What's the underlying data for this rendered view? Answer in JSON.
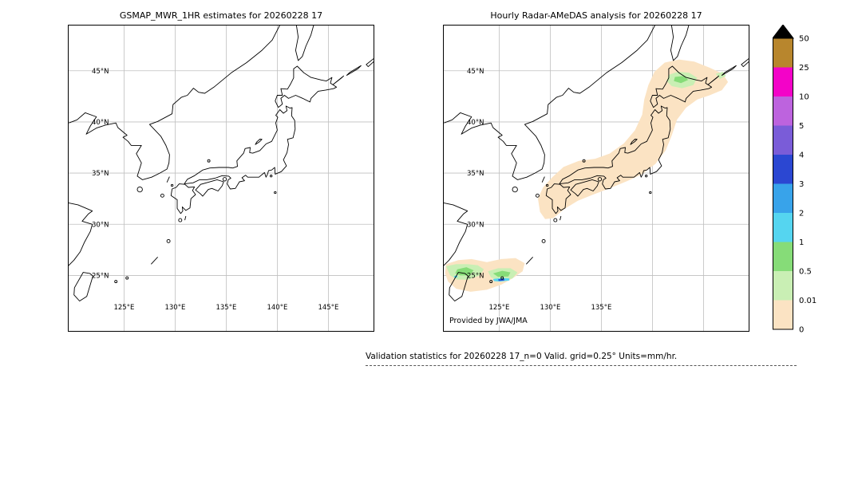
{
  "figure": {
    "background": "#ffffff",
    "caption": "Validation statistics for 20260228 17_n=0 Valid. grid=0.25° Units=mm/hr."
  },
  "panels": [
    {
      "key": "gsmap",
      "title": "GSMAP_MWR_1HR estimates for 20260228 17",
      "lat_ticks": [
        {
          "v": 45,
          "label": "45°N"
        },
        {
          "v": 40,
          "label": "40°N"
        },
        {
          "v": 35,
          "label": "35°N"
        },
        {
          "v": 30,
          "label": "30°N"
        },
        {
          "v": 25,
          "label": "25°N"
        }
      ],
      "lon_ticks": [
        {
          "v": 125,
          "label": "125°E"
        },
        {
          "v": 130,
          "label": "130°E"
        },
        {
          "v": 135,
          "label": "135°E"
        },
        {
          "v": 140,
          "label": "140°E"
        },
        {
          "v": 145,
          "label": "145°E"
        }
      ],
      "precipitation": false
    },
    {
      "key": "radar",
      "title": "Hourly Radar-AMeDAS analysis for 20260228 17",
      "credit": "Provided by JWA/JMA",
      "lat_ticks": [
        {
          "v": 45,
          "label": "45°N"
        },
        {
          "v": 40,
          "label": "40°N"
        },
        {
          "v": 35,
          "label": "35°N"
        },
        {
          "v": 30,
          "label": "30°N"
        },
        {
          "v": 25,
          "label": "25°N"
        }
      ],
      "lon_ticks": [
        {
          "v": 125,
          "label": "125°E"
        },
        {
          "v": 130,
          "label": "130°E"
        },
        {
          "v": 135,
          "label": "135°E"
        }
      ],
      "precipitation": true
    }
  ],
  "axes": {
    "lon_min": 119.5,
    "lon_max": 149.5,
    "lat_min": 19.5,
    "lat_max": 49.5
  },
  "colorbar": {
    "overflow_color": "#000000",
    "tick_labels": [
      "50",
      "25",
      "10",
      "5",
      "4",
      "3",
      "2",
      "1",
      "0.5",
      "0.01",
      "0"
    ],
    "segments": [
      {
        "range": "25-50",
        "color": "#b8862d"
      },
      {
        "range": "10-25",
        "color": "#f303c8"
      },
      {
        "range": "5-10",
        "color": "#bd63de"
      },
      {
        "range": "4-5",
        "color": "#7a5cd8"
      },
      {
        "range": "3-4",
        "color": "#2b47d2"
      },
      {
        "range": "2-3",
        "color": "#38a3ea"
      },
      {
        "range": "1-2",
        "color": "#55d5f0"
      },
      {
        "range": "0.5-1",
        "color": "#86dc78"
      },
      {
        "range": "0.01-0.5",
        "color": "#c9efb4"
      },
      {
        "range": "0-0.01",
        "color": "#fbe3c3"
      }
    ]
  },
  "chart_data": {
    "type": "heatmap",
    "units": "mm/hr",
    "levels": [
      0,
      0.01,
      0.5,
      1,
      2,
      3,
      4,
      5,
      10,
      25,
      50
    ],
    "x_range_lon": [
      119.5,
      149.5
    ],
    "y_range_lat": [
      19.5,
      49.5
    ],
    "panels": [
      {
        "name": "GSMAP_MWR_1HR estimates for 20260228 17",
        "content": "no precipitation shown (blank map of Japan)"
      },
      {
        "name": "Hourly Radar-AMeDAS analysis for 20260228 17",
        "content": "light precipitation band (0-0.01 mm/hr peach) along Japanese archipelago from Kyushu to Hokkaido; 0.01-1 mm/hr green over central Hokkaido; 0.01-5 mm/hr green/cyan/blue cells near 24-26N, 120-127E"
      }
    ]
  },
  "style": {
    "coast_color": "#000000",
    "grid_color": "#bfbfbf",
    "frame_color": "#000000"
  }
}
